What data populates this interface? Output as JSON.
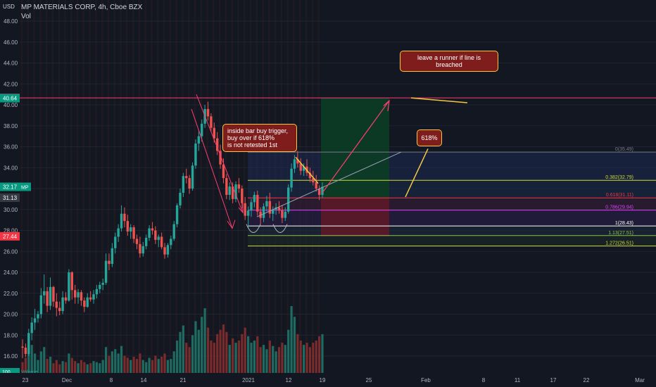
{
  "header": {
    "currency": "USD",
    "symbol_line": "MP MATERIALS CORP, 4h, Cboe BZX",
    "vol_label": "Vol"
  },
  "chart_data": {
    "type": "candlestick",
    "y_ticks": [
      "48.00",
      "46.00",
      "44.00",
      "42.00",
      "40.00",
      "38.00",
      "36.00",
      "34.00",
      "32.00",
      "30.00",
      "28.00",
      "26.00",
      "24.00",
      "22.00",
      "20.00",
      "18.00",
      "16.00"
    ],
    "ylim": [
      15.0,
      49.0
    ],
    "x_ticks": [
      "23",
      "Dec",
      "8",
      "14",
      "21",
      "2021",
      "12",
      "19",
      "25",
      "Feb",
      "8",
      "11",
      "17",
      "22",
      "Mar"
    ],
    "price_badges": [
      {
        "label": "40.66",
        "value": 40.66,
        "color": "#f23645"
      },
      {
        "label": "40.64",
        "value": 40.64,
        "color": "#089981"
      },
      {
        "label": "32.17",
        "value": 32.17,
        "color": "#089981",
        "tag": "MP"
      },
      {
        "label": "31.13",
        "value": 31.13,
        "color": "#363a45"
      },
      {
        "label": "27.44",
        "value": 27.44,
        "color": "#f23645"
      }
    ],
    "volume_badge": {
      "label": "100",
      "text": "Volume"
    },
    "horizontal_line": {
      "value": 40.66,
      "color": "#ff3d71"
    },
    "fib_levels": [
      {
        "label": "0(35.49)",
        "value": 35.49,
        "color": "#787b86"
      },
      {
        "label": "0.382(32.79)",
        "value": 32.79,
        "color": "#cddc39"
      },
      {
        "label": "0.618(31.11)",
        "value": 31.11,
        "color": "#f23645"
      },
      {
        "label": "0.786(29.94)",
        "value": 29.94,
        "color": "#e040fb"
      },
      {
        "label": "1(28.43)",
        "value": 28.43,
        "color": "#ffffff"
      },
      {
        "label": "1.13(27.51)",
        "value": 27.51,
        "color": "#8bc34a"
      },
      {
        "label": "1.272(26.51)",
        "value": 26.51,
        "color": "#cddc39"
      }
    ],
    "position": {
      "entry": 31.13,
      "target": 40.66,
      "stop": 27.44
    },
    "candles": [
      [
        16.9,
        17.6,
        15.8,
        16.8
      ],
      [
        16.8,
        17.2,
        15.9,
        16.2
      ],
      [
        16.2,
        18.6,
        16.0,
        18.2
      ],
      [
        18.2,
        19.7,
        17.5,
        19.2
      ],
      [
        19.2,
        20.5,
        18.5,
        19.6
      ],
      [
        19.6,
        20.3,
        19.2,
        20.0
      ],
      [
        20.0,
        22.5,
        19.6,
        21.8
      ],
      [
        21.8,
        23.8,
        21.0,
        22.2
      ],
      [
        22.2,
        22.6,
        20.2,
        20.8
      ],
      [
        20.8,
        23.5,
        20.4,
        22.6
      ],
      [
        22.6,
        22.7,
        20.7,
        21.2
      ],
      [
        21.2,
        22.0,
        19.8,
        20.6
      ],
      [
        20.6,
        21.2,
        19.9,
        20.3
      ],
      [
        20.3,
        22.2,
        20.0,
        21.6
      ],
      [
        21.6,
        22.1,
        21.0,
        21.3
      ],
      [
        21.3,
        24.3,
        21.2,
        24.0
      ],
      [
        24.0,
        24.1,
        21.4,
        22.3
      ],
      [
        22.3,
        22.8,
        21.0,
        21.6
      ],
      [
        21.6,
        22.4,
        21.0,
        22.1
      ],
      [
        22.1,
        22.3,
        20.8,
        21.3
      ],
      [
        21.3,
        21.6,
        20.2,
        20.7
      ],
      [
        20.7,
        22.0,
        20.6,
        21.6
      ],
      [
        21.6,
        22.2,
        21.2,
        21.4
      ],
      [
        21.4,
        22.3,
        21.0,
        21.9
      ],
      [
        21.9,
        22.8,
        21.5,
        22.4
      ],
      [
        22.4,
        23.1,
        22.0,
        22.8
      ],
      [
        22.8,
        23.4,
        22.3,
        23.0
      ],
      [
        23.0,
        25.8,
        22.8,
        25.1
      ],
      [
        25.1,
        25.8,
        24.2,
        24.8
      ],
      [
        24.8,
        26.8,
        24.5,
        26.3
      ],
      [
        26.3,
        27.8,
        25.8,
        27.4
      ],
      [
        27.4,
        28.6,
        26.9,
        28.2
      ],
      [
        28.2,
        30.4,
        27.9,
        29.6
      ],
      [
        29.6,
        30.2,
        28.3,
        28.9
      ],
      [
        28.9,
        29.5,
        27.5,
        27.9
      ],
      [
        27.9,
        28.6,
        27.2,
        28.3
      ],
      [
        28.3,
        28.5,
        26.8,
        27.2
      ],
      [
        27.2,
        27.6,
        26.2,
        26.7
      ],
      [
        26.7,
        27.4,
        25.4,
        25.8
      ],
      [
        25.8,
        26.9,
        25.5,
        26.5
      ],
      [
        26.5,
        27.6,
        26.2,
        27.3
      ],
      [
        27.3,
        28.5,
        27.0,
        28.2
      ],
      [
        28.2,
        28.8,
        27.6,
        28.0
      ],
      [
        28.0,
        28.4,
        26.7,
        27.1
      ],
      [
        27.1,
        27.6,
        26.4,
        27.4
      ],
      [
        27.4,
        27.8,
        26.2,
        26.4
      ],
      [
        26.4,
        26.8,
        25.3,
        25.7
      ],
      [
        25.7,
        26.8,
        25.4,
        26.6
      ],
      [
        26.6,
        27.5,
        26.2,
        27.2
      ],
      [
        27.2,
        28.9,
        27.0,
        28.6
      ],
      [
        28.6,
        30.6,
        28.3,
        30.4
      ],
      [
        30.4,
        32.0,
        30.1,
        31.6
      ],
      [
        31.6,
        33.5,
        31.2,
        33.2
      ],
      [
        33.2,
        33.9,
        32.5,
        33.0
      ],
      [
        33.0,
        33.3,
        31.5,
        32.0
      ],
      [
        32.0,
        34.5,
        31.8,
        34.2
      ],
      [
        34.2,
        36.7,
        33.9,
        36.3
      ],
      [
        36.3,
        37.5,
        35.6,
        37.0
      ],
      [
        37.0,
        38.6,
        36.5,
        38.2
      ],
      [
        38.2,
        40.0,
        37.8,
        39.6
      ],
      [
        39.6,
        40.3,
        38.5,
        38.9
      ],
      [
        38.9,
        39.2,
        37.4,
        37.8
      ],
      [
        37.8,
        38.3,
        36.4,
        36.8
      ],
      [
        36.8,
        37.4,
        35.2,
        35.6
      ],
      [
        35.6,
        36.2,
        33.9,
        34.3
      ],
      [
        34.3,
        34.9,
        32.5,
        33.0
      ],
      [
        33.0,
        33.4,
        31.0,
        31.4
      ],
      [
        31.4,
        32.6,
        30.9,
        32.2
      ],
      [
        32.2,
        32.6,
        30.6,
        31.0
      ],
      [
        31.0,
        32.7,
        30.7,
        32.4
      ],
      [
        32.4,
        33.0,
        31.6,
        32.0
      ],
      [
        32.0,
        32.3,
        30.1,
        30.6
      ],
      [
        30.6,
        31.2,
        29.0,
        29.4
      ],
      [
        29.4,
        30.3,
        28.2,
        29.9
      ],
      [
        29.9,
        31.0,
        29.3,
        30.7
      ],
      [
        30.7,
        31.7,
        30.2,
        31.4
      ],
      [
        31.4,
        31.8,
        29.4,
        29.8
      ],
      [
        29.8,
        30.2,
        28.6,
        29.2
      ],
      [
        29.2,
        30.6,
        28.8,
        30.3
      ],
      [
        30.3,
        31.3,
        29.8,
        30.8
      ],
      [
        30.8,
        31.6,
        29.2,
        29.6
      ],
      [
        29.6,
        30.3,
        28.9,
        30.0
      ],
      [
        30.0,
        30.6,
        29.5,
        30.2
      ],
      [
        30.2,
        30.8,
        29.6,
        29.9
      ],
      [
        29.9,
        30.4,
        28.7,
        29.2
      ],
      [
        29.2,
        30.2,
        28.9,
        29.8
      ],
      [
        29.8,
        32.4,
        29.6,
        32.1
      ],
      [
        32.1,
        34.4,
        31.7,
        33.9
      ],
      [
        33.9,
        35.2,
        33.5,
        34.8
      ],
      [
        34.8,
        35.6,
        34.0,
        34.4
      ],
      [
        34.4,
        34.9,
        33.3,
        33.7
      ],
      [
        33.7,
        34.4,
        33.2,
        34.1
      ],
      [
        34.1,
        34.8,
        33.2,
        33.5
      ],
      [
        33.5,
        34.0,
        32.6,
        33.0
      ],
      [
        33.0,
        33.7,
        32.3,
        32.6
      ],
      [
        32.6,
        33.3,
        31.7,
        32.0
      ],
      [
        32.0,
        32.3,
        30.9,
        31.4
      ],
      [
        31.4,
        32.6,
        31.1,
        32.17
      ]
    ],
    "volumes": [
      10,
      14,
      22,
      26,
      18,
      12,
      20,
      24,
      13,
      15,
      9,
      12,
      8,
      11,
      10,
      18,
      14,
      11,
      9,
      12,
      10,
      8,
      9,
      11,
      10,
      9,
      12,
      24,
      16,
      20,
      22,
      18,
      25,
      16,
      14,
      12,
      15,
      13,
      18,
      12,
      10,
      14,
      12,
      16,
      13,
      15,
      18,
      12,
      13,
      20,
      30,
      38,
      44,
      28,
      24,
      35,
      48,
      40,
      52,
      60,
      42,
      30,
      28,
      36,
      40,
      45,
      38,
      26,
      32,
      28,
      30,
      36,
      42,
      34,
      28,
      30,
      34,
      24,
      26,
      22,
      30,
      25,
      20,
      24,
      28,
      26,
      40,
      62,
      52,
      36,
      30,
      26,
      28,
      24,
      28,
      30,
      34,
      36
    ]
  },
  "annotations": {
    "inside_bar": "inside bar buy trigger,\nbuy over if 618%\nis not retested 1st",
    "runner": "leave a runner if line is  breached",
    "fib618": "618%"
  },
  "colors": {
    "background": "#131722",
    "up": "#26a69a",
    "down": "#ef5350",
    "vol_up": "#1e6b62",
    "vol_down": "#7a2b2b",
    "arrow": "#ff3d71",
    "target_zone": "#0c3d24",
    "stop_zone": "#5c1a28"
  }
}
